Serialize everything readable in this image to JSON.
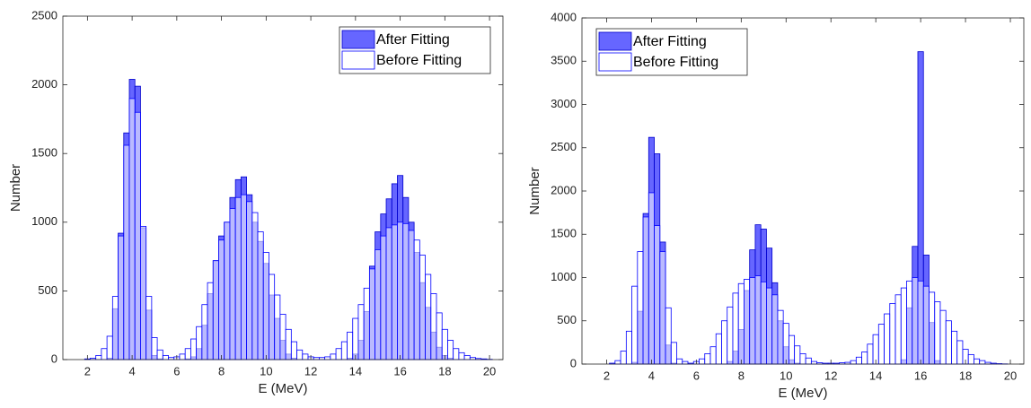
{
  "chart_data": [
    {
      "type": "histogram",
      "xlabel": "E (MeV)",
      "ylabel": "Number",
      "bins": [
        1.875,
        2.125,
        2.375,
        2.625,
        2.875,
        3.125,
        3.375,
        3.625,
        3.875,
        4.125,
        4.375,
        4.625,
        4.875,
        5.125,
        5.375,
        5.625,
        5.875,
        6.125,
        6.375,
        6.625,
        6.875,
        7.125,
        7.375,
        7.625,
        7.875,
        8.125,
        8.375,
        8.625,
        8.875,
        9.125,
        9.375,
        9.625,
        9.875,
        10.125,
        10.375,
        10.625,
        10.875,
        11.125,
        11.375,
        11.625,
        11.875,
        12.125,
        12.375,
        12.625,
        12.875,
        13.125,
        13.375,
        13.625,
        13.875,
        14.125,
        14.375,
        14.625,
        14.875,
        15.125,
        15.375,
        15.625,
        15.875,
        16.125,
        16.375,
        16.625,
        16.875,
        17.125,
        17.375,
        17.625,
        17.875,
        18.125,
        18.375,
        18.625,
        18.875,
        19.125,
        19.375,
        19.625,
        19.875,
        20.125
      ],
      "series": [
        {
          "name": "After Fitting",
          "color": "#0000ff",
          "edgecolor": "#0000cc",
          "alpha": 0.6,
          "values": [
            0,
            0,
            0,
            0,
            10,
            370,
            920,
            1650,
            2040,
            1990,
            960,
            360,
            30,
            5,
            0,
            0,
            0,
            0,
            5,
            20,
            80,
            250,
            480,
            720,
            900,
            1000,
            1180,
            1310,
            1330,
            1200,
            1000,
            860,
            700,
            470,
            300,
            140,
            40,
            10,
            0,
            0,
            0,
            0,
            0,
            0,
            0,
            0,
            0,
            10,
            40,
            140,
            350,
            680,
            930,
            1060,
            1170,
            1280,
            1340,
            1180,
            1000,
            780,
            560,
            380,
            200,
            90,
            30,
            10,
            0,
            0,
            0,
            0,
            0,
            0,
            0
          ]
        },
        {
          "name": "Before Fitting",
          "color": "#ffffff",
          "edgecolor": "#0000ff",
          "alpha": 0.55,
          "values": [
            5,
            10,
            30,
            80,
            170,
            460,
            900,
            1560,
            1900,
            1800,
            970,
            460,
            160,
            70,
            30,
            15,
            20,
            40,
            80,
            150,
            240,
            400,
            560,
            720,
            870,
            1000,
            1100,
            1180,
            1200,
            1150,
            1070,
            930,
            780,
            620,
            470,
            330,
            220,
            130,
            70,
            40,
            20,
            15,
            15,
            20,
            40,
            80,
            130,
            200,
            300,
            400,
            520,
            660,
            800,
            900,
            960,
            980,
            1000,
            990,
            940,
            870,
            760,
            620,
            480,
            340,
            220,
            140,
            80,
            50,
            30,
            15,
            8,
            5,
            2
          ]
        }
      ],
      "xlim": [
        0.9,
        20.6
      ],
      "xticks": [
        2,
        4,
        6,
        8,
        10,
        12,
        14,
        16,
        18,
        20
      ],
      "ylim": [
        0,
        2500
      ],
      "yticks": [
        0,
        500,
        1000,
        1500,
        2000,
        2500
      ],
      "legend": "upper right"
    },
    {
      "type": "histogram",
      "xlabel": "E (MeV)",
      "ylabel": "Number",
      "bins": [
        1.875,
        2.125,
        2.375,
        2.625,
        2.875,
        3.125,
        3.375,
        3.625,
        3.875,
        4.125,
        4.375,
        4.625,
        4.875,
        5.125,
        5.375,
        5.625,
        5.875,
        6.125,
        6.375,
        6.625,
        6.875,
        7.125,
        7.375,
        7.625,
        7.875,
        8.125,
        8.375,
        8.625,
        8.875,
        9.125,
        9.375,
        9.625,
        9.875,
        10.125,
        10.375,
        10.625,
        10.875,
        11.125,
        11.375,
        11.625,
        11.875,
        12.125,
        12.375,
        12.625,
        12.875,
        13.125,
        13.375,
        13.625,
        13.875,
        14.125,
        14.375,
        14.625,
        14.875,
        15.125,
        15.375,
        15.625,
        15.875,
        16.125,
        16.375,
        16.625,
        16.875,
        17.125,
        17.375,
        17.625,
        17.875,
        18.125,
        18.375,
        18.625,
        18.875,
        19.125,
        19.375,
        19.625,
        19.875,
        20.125
      ],
      "series": [
        {
          "name": "After Fitting",
          "color": "#0000ff",
          "edgecolor": "#0000cc",
          "alpha": 0.6,
          "values": [
            0,
            0,
            0,
            0,
            0,
            20,
            610,
            1740,
            2620,
            2430,
            1410,
            220,
            10,
            0,
            0,
            0,
            0,
            0,
            0,
            0,
            0,
            0,
            30,
            150,
            400,
            850,
            1320,
            1610,
            1560,
            1340,
            940,
            500,
            200,
            50,
            10,
            0,
            0,
            0,
            0,
            0,
            0,
            0,
            0,
            0,
            0,
            0,
            0,
            0,
            0,
            0,
            0,
            0,
            0,
            50,
            650,
            1360,
            3610,
            1260,
            480,
            40,
            0,
            0,
            0,
            0,
            0,
            0,
            0,
            0,
            0,
            0,
            0,
            0,
            0
          ]
        },
        {
          "name": "Before Fitting",
          "color": "#ffffff",
          "edgecolor": "#0000ff",
          "alpha": 0.55,
          "values": [
            0,
            10,
            40,
            150,
            380,
            900,
            1300,
            1700,
            1980,
            1600,
            1300,
            650,
            250,
            60,
            30,
            10,
            30,
            60,
            120,
            200,
            350,
            500,
            660,
            820,
            930,
            980,
            1000,
            1020,
            950,
            880,
            800,
            620,
            470,
            330,
            210,
            120,
            70,
            30,
            15,
            10,
            10,
            10,
            15,
            20,
            40,
            80,
            140,
            230,
            340,
            460,
            580,
            700,
            800,
            880,
            960,
            1000,
            960,
            900,
            830,
            720,
            620,
            500,
            380,
            270,
            170,
            110,
            60,
            40,
            20,
            10,
            5,
            2,
            0
          ]
        }
      ],
      "xlim": [
        0.9,
        20.6
      ],
      "xticks": [
        2,
        4,
        6,
        8,
        10,
        12,
        14,
        16,
        18,
        20
      ],
      "ylim": [
        0,
        4000
      ],
      "yticks": [
        0,
        500,
        1000,
        1500,
        2000,
        2500,
        3000,
        3500,
        4000
      ],
      "legend": "upper left"
    }
  ]
}
